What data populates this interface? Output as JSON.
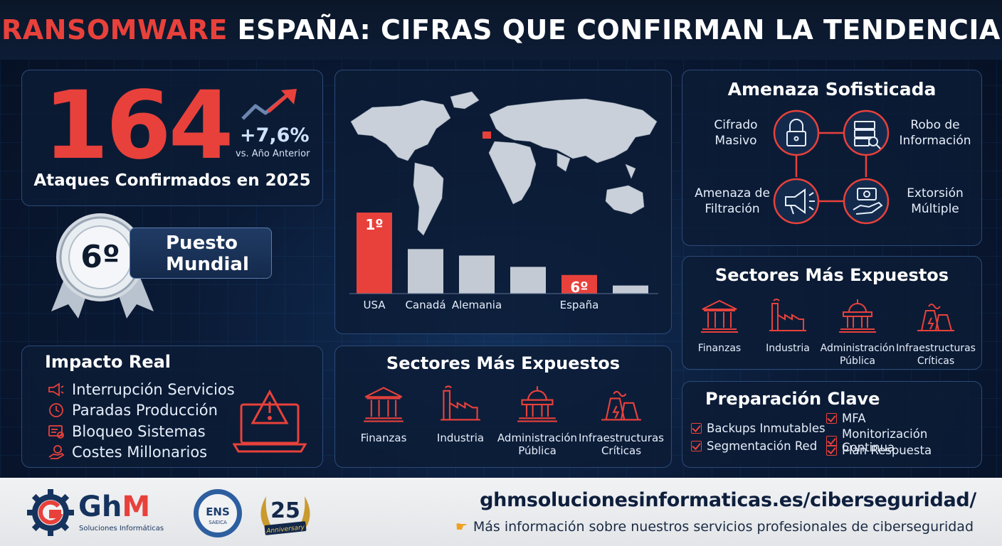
{
  "title": {
    "red": "RANSOMWARE",
    "rest": " ESPAÑA: CIFRAS QUE CONFIRMAN LA TENDENCIA"
  },
  "stat": {
    "number": "164",
    "growth": "+7,6%",
    "growth_sub": "vs. Año Anterior",
    "label": "Ataques Confirmados en 2025"
  },
  "rank": {
    "number": "6º",
    "line1": "Puesto",
    "line2": "Mundial"
  },
  "ranking_chart": {
    "bars": [
      {
        "country": "USA",
        "rank_label": "1º",
        "highlight": true,
        "level": 1.0
      },
      {
        "country": "Canadá",
        "rank_label": "",
        "highlight": false,
        "level": 0.55
      },
      {
        "country": "Alemania",
        "rank_label": "",
        "highlight": false,
        "level": 0.47
      },
      {
        "country": "",
        "rank_label": "",
        "highlight": false,
        "level": 0.33
      },
      {
        "country": "España",
        "rank_label": "6º",
        "highlight": true,
        "level": 0.23
      },
      {
        "country": "",
        "rank_label": "",
        "highlight": false,
        "level": 0.1
      }
    ],
    "colors": {
      "highlight": "#e8413b",
      "normal": "#c3cad3"
    }
  },
  "threat": {
    "title": "Amenaza Sofisticada",
    "items": [
      {
        "label": "Cifrado Masivo",
        "icon": "lock-icon"
      },
      {
        "label": "Robo de Información",
        "icon": "server-search-icon"
      },
      {
        "label": "Amenaza de Filtración",
        "icon": "megaphone-icon"
      },
      {
        "label": "Extorsión Múltiple",
        "icon": "money-hand-icon"
      }
    ]
  },
  "sectors": {
    "title": "Sectores Más Expuestos",
    "items": [
      {
        "label1": "Finanzas",
        "label2": "",
        "icon": "bank-icon"
      },
      {
        "label1": "Industria",
        "label2": "",
        "icon": "factory-icon"
      },
      {
        "label1": "Administración",
        "label2": "Pública",
        "icon": "government-icon"
      },
      {
        "label1": "Infraestructuras",
        "label2": "Críticas",
        "icon": "power-plant-icon"
      }
    ]
  },
  "impact": {
    "title": "Impacto Real",
    "items": [
      {
        "label": "Interrupción Servicios",
        "icon": "megaphone-icon"
      },
      {
        "label": "Paradas Producción",
        "icon": "clock-icon"
      },
      {
        "label": "Bloqueo Sistemas",
        "icon": "blocked-screen-icon"
      },
      {
        "label": "Costes Millonarios",
        "icon": "coin-hand-icon"
      }
    ]
  },
  "prep": {
    "title": "Preparación Clave",
    "items": [
      "Backups Inmutables",
      "Segmentación Red",
      "MFA",
      "Monitorización Continua",
      "Plan Respuesta"
    ]
  },
  "footer": {
    "logo_main": "Gh",
    "logo_m": "M",
    "logo_sub": "Soluciones Informáticas",
    "ens_top": "ENS",
    "ens_bottom": "SAEICA",
    "anniv_num": "25",
    "anniv_word": "Anniversary",
    "url": "ghmsolucionesinformaticas.es/ciberseguridad/",
    "more": "Más información sobre nuestros servicios profesionales de ciberseguridad"
  },
  "colors": {
    "accent_red": "#e8413b",
    "navy": "#0b1628",
    "panel_border": "#2c4a78"
  }
}
